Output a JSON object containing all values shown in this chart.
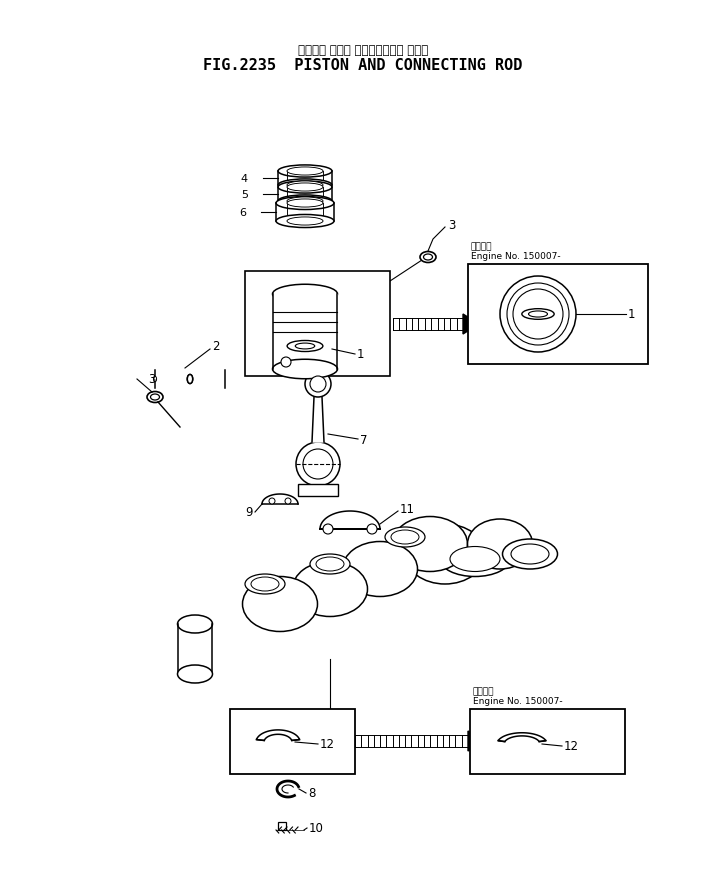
{
  "title_jp": "ピストン および コネクティング ロッド",
  "title_en": "FIG.2235  PISTON AND CONNECTING ROD",
  "bg_color": "#ffffff",
  "lc": "#000000",
  "fig_width": 7.27,
  "fig_height": 8.79,
  "dpi": 100,
  "label_jp": "適用番号",
  "label_en": "Engine No. 150007-"
}
